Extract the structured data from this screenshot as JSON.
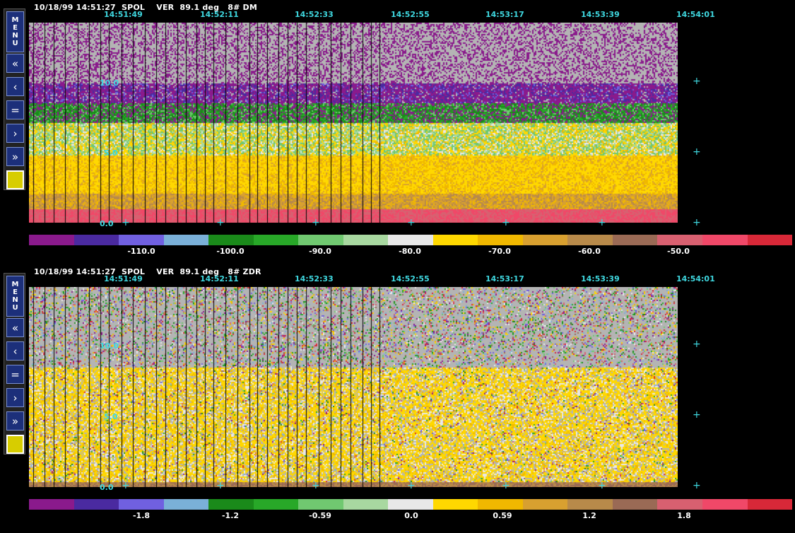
{
  "panels": [
    {
      "id": "dm",
      "header": "10/18/99 14:51:27  SPOL    VER  89.1 deg   8# DM",
      "time_labels": [
        "14:51:49",
        "14:52:11",
        "14:52:33",
        "14:52:55",
        "14:53:17",
        "14:53:39",
        "14:54:01"
      ],
      "y_labels": [
        "10.0",
        "5.0",
        "0.0"
      ],
      "colorbar_labels": [
        "-110.0",
        "-100.0",
        "-90.0",
        "-80.0",
        "-70.0",
        "-60.0",
        "-50.0"
      ]
    },
    {
      "id": "zdr",
      "header": "10/18/99 14:51:27  SPOL    VER  89.1 deg   8# ZDR",
      "time_labels": [
        "14:51:49",
        "14:52:11",
        "14:52:33",
        "14:52:55",
        "14:53:17",
        "14:53:39",
        "14:54:01"
      ],
      "y_labels": [
        "10.0",
        "5.0",
        "0.0"
      ],
      "colorbar_labels": [
        "-1.8",
        "-1.2",
        "-0.59",
        "0.0",
        "0.59",
        "1.2",
        "1.8"
      ]
    }
  ],
  "toolbar": {
    "menu_label": "MENU",
    "buttons": [
      {
        "name": "fast-back-button",
        "icon": "double-chevron-left-icon",
        "glyph": "«"
      },
      {
        "name": "step-back-button",
        "icon": "chevron-left-icon",
        "glyph": "‹"
      },
      {
        "name": "current-button",
        "icon": "equals-icon",
        "glyph": "="
      },
      {
        "name": "step-forward-button",
        "icon": "chevron-right-icon",
        "glyph": "›"
      },
      {
        "name": "fast-forward-button",
        "icon": "double-chevron-right-icon",
        "glyph": "»"
      }
    ]
  },
  "colors": {
    "background": "#000000",
    "label_cyan": "#3fd8e0",
    "plot_gray": "#b4b4b4",
    "palette": [
      "#8a1a8c",
      "#4a2aa0",
      "#7060e0",
      "#7ab0d8",
      "#1a8a1a",
      "#28a828",
      "#70c870",
      "#a8d8a0",
      "#e8e8e8",
      "#ffd800",
      "#f0b800",
      "#d8a030",
      "#b88a4a",
      "#9a6a55",
      "#d86070",
      "#f04868",
      "#d82838"
    ]
  }
}
